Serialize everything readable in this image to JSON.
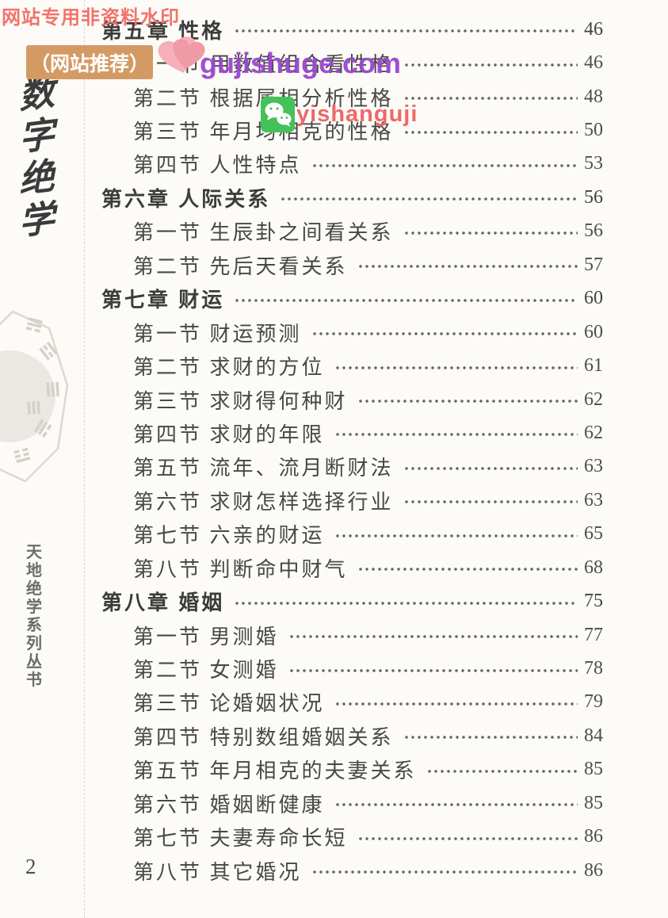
{
  "page": {
    "background": "#fcfbf7",
    "text_color": "#484848"
  },
  "watermarks": {
    "top_left": "网站专用非资料水印",
    "badge": "（网站推荐）",
    "site": "gujishuge.com",
    "wechat_handle": "yishanguji",
    "colors": {
      "top_left": "#f2736c",
      "badge_bg": "#d49a63",
      "badge_text": "#ffffff",
      "site": "#9a46cf",
      "handle": "#ef6868",
      "heart_light": "#f5b0b8",
      "heart_dark": "#f09aa5",
      "wechat_green": "#45c257"
    }
  },
  "sidebar": {
    "book_title": "数字绝学",
    "series_title": "天地绝学系列丛书",
    "page_number": "2"
  },
  "toc": [
    {
      "type": "chapter",
      "label": "第五章 性格",
      "page": "46"
    },
    {
      "type": "section",
      "label": "第一节 用数值组合看性格",
      "page": "46"
    },
    {
      "type": "section",
      "label": "第二节 根据属相分析性格",
      "page": "48"
    },
    {
      "type": "section",
      "label": "第三节 年月均相克的性格",
      "page": "50"
    },
    {
      "type": "section",
      "label": "第四节 人性特点",
      "page": "53"
    },
    {
      "type": "chapter",
      "label": "第六章 人际关系",
      "page": "56"
    },
    {
      "type": "section",
      "label": "第一节 生辰卦之间看关系",
      "page": "56"
    },
    {
      "type": "section",
      "label": "第二节 先后天看关系",
      "page": "57"
    },
    {
      "type": "chapter",
      "label": "第七章 财运",
      "page": "60"
    },
    {
      "type": "section",
      "label": "第一节 财运预测",
      "page": "60"
    },
    {
      "type": "section",
      "label": "第二节 求财的方位",
      "page": "61"
    },
    {
      "type": "section",
      "label": "第三节 求财得何种财",
      "page": "62"
    },
    {
      "type": "section",
      "label": "第四节 求财的年限",
      "page": "62"
    },
    {
      "type": "section",
      "label": "第五节 流年、流月断财法",
      "page": "63"
    },
    {
      "type": "section",
      "label": "第六节 求财怎样选择行业",
      "page": "63"
    },
    {
      "type": "section",
      "label": "第七节 六亲的财运",
      "page": "65"
    },
    {
      "type": "section",
      "label": "第八节 判断命中财气",
      "page": "68"
    },
    {
      "type": "chapter",
      "label": "第八章 婚姻",
      "page": "75"
    },
    {
      "type": "section",
      "label": "第一节 男测婚",
      "page": "77"
    },
    {
      "type": "section",
      "label": "第二节 女测婚",
      "page": "78"
    },
    {
      "type": "section",
      "label": "第三节 论婚姻状况",
      "page": "79"
    },
    {
      "type": "section",
      "label": "第四节 特别数组婚姻关系",
      "page": "84"
    },
    {
      "type": "section",
      "label": "第五节 年月相克的夫妻关系",
      "page": "85"
    },
    {
      "type": "section",
      "label": "第六节 婚姻断健康",
      "page": "85"
    },
    {
      "type": "section",
      "label": "第七节 夫妻寿命长短",
      "page": "86"
    },
    {
      "type": "section",
      "label": "第八节 其它婚况",
      "page": "86"
    }
  ]
}
